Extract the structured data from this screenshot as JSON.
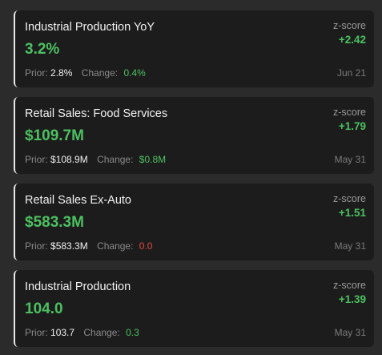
{
  "colors": {
    "background": "#2b2b2b",
    "card": "#1c1c1c",
    "positive": "#4cc061",
    "negative": "#e0473f",
    "muted": "#8a8a8a"
  },
  "cards": [
    {
      "title": "Industrial Production YoY",
      "value": "3.2%",
      "prior_label": "Prior:",
      "prior": "2.8%",
      "change_label": "Change:",
      "change": "0.4%",
      "change_direction": "positive",
      "z_label": "z-score",
      "z_value": "+2.42",
      "date": "Jun 21"
    },
    {
      "title": "Retail Sales: Food Services",
      "value": "$109.7M",
      "prior_label": "Prior:",
      "prior": "$108.9M",
      "change_label": "Change:",
      "change": "$0.8M",
      "change_direction": "positive",
      "z_label": "z-score",
      "z_value": "+1.79",
      "date": "May 31"
    },
    {
      "title": "Retail Sales Ex-Auto",
      "value": "$583.3M",
      "prior_label": "Prior:",
      "prior": "$583.3M",
      "change_label": "Change:",
      "change": "0.0",
      "change_direction": "negative",
      "z_label": "z-score",
      "z_value": "+1.51",
      "date": "May 31"
    },
    {
      "title": "Industrial Production",
      "value": "104.0",
      "prior_label": "Prior:",
      "prior": "103.7",
      "change_label": "Change:",
      "change": "0.3",
      "change_direction": "positive",
      "z_label": "z-score",
      "z_value": "+1.39",
      "date": "May 31"
    }
  ]
}
